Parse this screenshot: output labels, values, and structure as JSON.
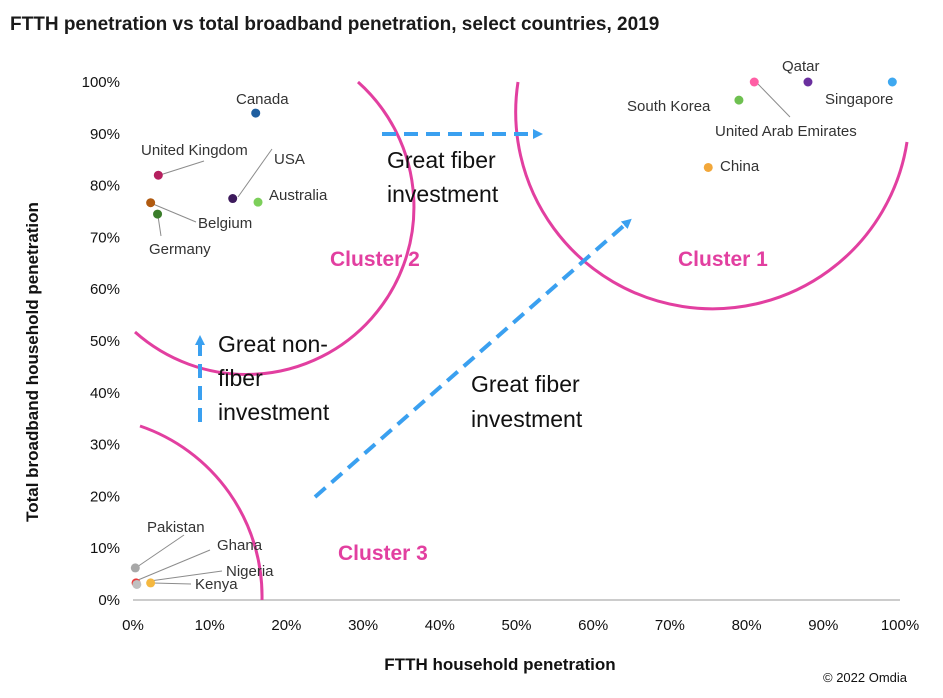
{
  "chart_data": {
    "type": "scatter",
    "title": "FTTH penetration vs total broadband penetration, select countries, 2019",
    "xlabel": "FTTH household penetration",
    "ylabel": "Total broadband household penetration",
    "xlim": [
      0,
      100
    ],
    "ylim": [
      0,
      100
    ],
    "x_ticks": [
      "0%",
      "10%",
      "20%",
      "30%",
      "40%",
      "50%",
      "60%",
      "70%",
      "80%",
      "90%",
      "100%"
    ],
    "y_ticks": [
      "0%",
      "10%",
      "20%",
      "30%",
      "40%",
      "50%",
      "60%",
      "70%",
      "80%",
      "90%",
      "100%"
    ],
    "grid": false,
    "points": [
      {
        "name": "Canada",
        "x": 16,
        "y": 94,
        "color": "#1f5fa0"
      },
      {
        "name": "United Kingdom",
        "x": 3.3,
        "y": 82,
        "color": "#b5205f"
      },
      {
        "name": "USA",
        "x": 13,
        "y": 77.5,
        "color": "#3d1a5c"
      },
      {
        "name": "Australia",
        "x": 16.3,
        "y": 76.8,
        "color": "#7ccf5a"
      },
      {
        "name": "Belgium",
        "x": 2.3,
        "y": 76.7,
        "color": "#b05a10"
      },
      {
        "name": "Germany",
        "x": 3.2,
        "y": 74.5,
        "color": "#3a7d2a"
      },
      {
        "name": "Qatar",
        "x": 88,
        "y": 100,
        "color": "#6a2f9e"
      },
      {
        "name": "Singapore",
        "x": 99,
        "y": 100,
        "color": "#3ea8f0"
      },
      {
        "name": "United Arab Emirates",
        "x": 81,
        "y": 100,
        "color": "#ff5fa5"
      },
      {
        "name": "South Korea",
        "x": 79,
        "y": 96.5,
        "color": "#6ec050"
      },
      {
        "name": "China",
        "x": 75,
        "y": 83.5,
        "color": "#f2a73a"
      },
      {
        "name": "Pakistan",
        "x": 0.3,
        "y": 6.2,
        "color": "#a8a8a8"
      },
      {
        "name": "Ghana",
        "x": 0.4,
        "y": 3.3,
        "color": "#e83c3c"
      },
      {
        "name": "Nigeria",
        "x": 0.5,
        "y": 3,
        "color": "#c0c0c0"
      },
      {
        "name": "Kenya",
        "x": 2.3,
        "y": 3.3,
        "color": "#f5b840"
      }
    ],
    "clusters": [
      {
        "label": "Cluster 1",
        "color": "#e23fa0"
      },
      {
        "label": "Cluster 2",
        "color": "#e23fa0"
      },
      {
        "label": "Cluster 3",
        "color": "#e23fa0"
      }
    ],
    "annotations": {
      "top_arrow": [
        "Great fiber",
        "investment"
      ],
      "vertical_arrow": [
        "Great non-",
        "fiber",
        "investment"
      ],
      "diagonal_arrow": [
        "Great fiber",
        "investment"
      ]
    },
    "arrow_color": "#3aa0f0"
  },
  "credit": "© 2022 Omdia"
}
